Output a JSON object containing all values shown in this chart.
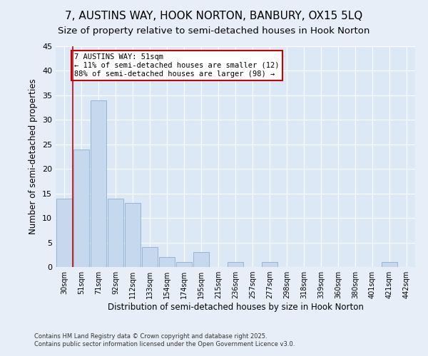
{
  "title": "7, AUSTINS WAY, HOOK NORTON, BANBURY, OX15 5LQ",
  "subtitle": "Size of property relative to semi-detached houses in Hook Norton",
  "xlabel": "Distribution of semi-detached houses by size in Hook Norton",
  "ylabel": "Number of semi-detached properties",
  "categories": [
    "30sqm",
    "51sqm",
    "71sqm",
    "92sqm",
    "112sqm",
    "133sqm",
    "154sqm",
    "174sqm",
    "195sqm",
    "215sqm",
    "236sqm",
    "257sqm",
    "277sqm",
    "298sqm",
    "318sqm",
    "339sqm",
    "360sqm",
    "380sqm",
    "401sqm",
    "421sqm",
    "442sqm"
  ],
  "values": [
    14,
    24,
    34,
    14,
    13,
    4,
    2,
    1,
    3,
    0,
    1,
    0,
    1,
    0,
    0,
    0,
    0,
    0,
    0,
    1,
    0
  ],
  "bar_color": "#c5d8ee",
  "bar_edge_color": "#8ab0d0",
  "ylim": [
    0,
    45
  ],
  "yticks": [
    0,
    5,
    10,
    15,
    20,
    25,
    30,
    35,
    40,
    45
  ],
  "vline_color": "#cc0000",
  "annotation_title": "7 AUSTINS WAY: 51sqm",
  "annotation_line1": "← 11% of semi-detached houses are smaller (12)",
  "annotation_line2": "88% of semi-detached houses are larger (98) →",
  "annotation_box_color": "#ffffff",
  "annotation_box_edge": "#cc0000",
  "footer1": "Contains HM Land Registry data © Crown copyright and database right 2025.",
  "footer2": "Contains public sector information licensed under the Open Government Licence v3.0.",
  "background_color": "#e8eef8",
  "plot_bg_color": "#dce8f5",
  "grid_color": "#ffffff",
  "title_fontsize": 11,
  "subtitle_fontsize": 9.5
}
